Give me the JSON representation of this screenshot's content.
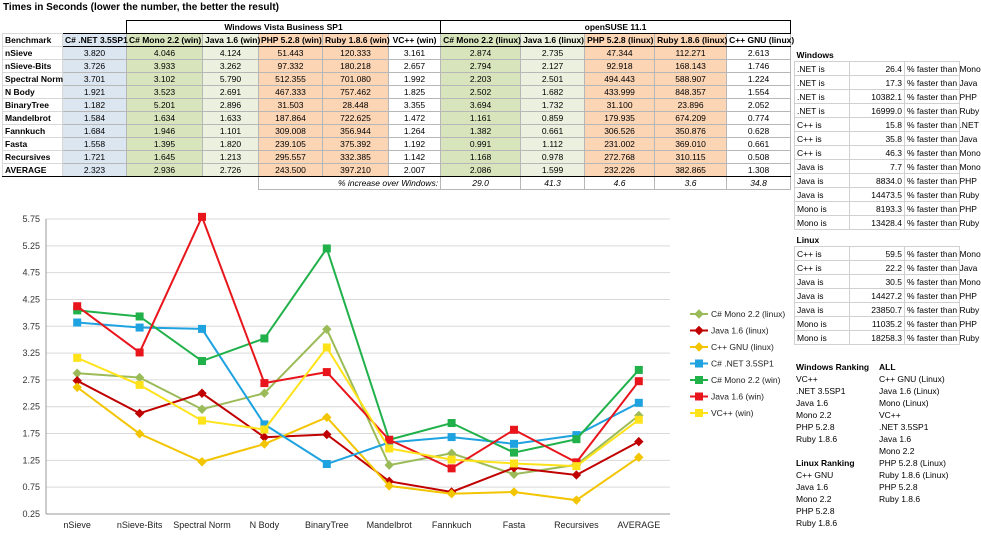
{
  "title": "Times in Seconds (lower the number, the better the result)",
  "groups": {
    "windows": "Windows Vista Business SP1",
    "linux": "openSUSE 11.1"
  },
  "columns": [
    "Benchmark",
    "C# .NET 3.5SP1",
    "C# Mono 2.2 (win)",
    "Java 1.6 (win)",
    "PHP 5.2.8 (win)",
    "Ruby 1.8.6 (win)",
    "VC++ (win)",
    "C# Mono 2.2 (linux)",
    "Java 1.6 (linux)",
    "PHP 5.2.8 (linux)",
    "Ruby 1.8.6 (linux)",
    "C++ GNU (linux)"
  ],
  "rows": [
    {
      "name": "nSieve",
      "values": [
        "3.820",
        "4.046",
        "4.124",
        "51.443",
        "120.333",
        "3.161",
        "2.874",
        "2.735",
        "47.344",
        "112.271",
        "2.613"
      ]
    },
    {
      "name": "nSieve-Bits",
      "values": [
        "3.726",
        "3.933",
        "3.262",
        "97.332",
        "180.218",
        "2.657",
        "2.794",
        "2.127",
        "92.918",
        "168.143",
        "1.746"
      ]
    },
    {
      "name": "Spectral Norm",
      "values": [
        "3.701",
        "3.102",
        "5.790",
        "512.355",
        "701.080",
        "1.992",
        "2.203",
        "2.501",
        "494.443",
        "588.907",
        "1.224"
      ]
    },
    {
      "name": "N Body",
      "values": [
        "1.921",
        "3.523",
        "2.691",
        "467.333",
        "757.462",
        "1.825",
        "2.502",
        "1.682",
        "433.999",
        "848.357",
        "1.554"
      ]
    },
    {
      "name": "BinaryTree",
      "values": [
        "1.182",
        "5.201",
        "2.896",
        "31.503",
        "28.448",
        "3.355",
        "3.694",
        "1.732",
        "31.100",
        "23.896",
        "2.052"
      ]
    },
    {
      "name": "Mandelbrot",
      "values": [
        "1.584",
        "1.634",
        "1.633",
        "187.864",
        "722.625",
        "1.472",
        "1.161",
        "0.859",
        "179.935",
        "674.209",
        "0.774"
      ]
    },
    {
      "name": "Fannkuch",
      "values": [
        "1.684",
        "1.946",
        "1.101",
        "309.008",
        "356.944",
        "1.264",
        "1.382",
        "0.661",
        "306.526",
        "350.876",
        "0.628"
      ]
    },
    {
      "name": "Fasta",
      "values": [
        "1.558",
        "1.395",
        "1.820",
        "239.105",
        "375.392",
        "1.192",
        "0.991",
        "1.112",
        "231.002",
        "369.010",
        "0.661"
      ]
    },
    {
      "name": "Recursives",
      "values": [
        "1.721",
        "1.645",
        "1.213",
        "295.557",
        "332.385",
        "1.142",
        "1.168",
        "0.978",
        "272.768",
        "310.115",
        "0.508"
      ]
    }
  ],
  "average": {
    "name": "AVERAGE",
    "values": [
      "2.323",
      "2.936",
      "2.726",
      "243.500",
      "397.210",
      "2.007",
      "2.086",
      "1.599",
      "232.226",
      "382.865",
      "1.308"
    ]
  },
  "increase": {
    "label": "% increase over Windows:",
    "values": [
      "29.0",
      "41.3",
      "4.6",
      "3.6",
      "34.8"
    ]
  },
  "windows_cmp": {
    "title": "Windows",
    "rows": [
      {
        "a": ".NET is",
        "v": "26.4",
        "t": "% faster than Mono"
      },
      {
        "a": ".NET is",
        "v": "17.3",
        "t": "% faster than Java"
      },
      {
        "a": ".NET is",
        "v": "10382.1",
        "t": "% faster than PHP"
      },
      {
        "a": ".NET is",
        "v": "16999.0",
        "t": "% faster than Ruby"
      },
      {
        "a": "C++ is",
        "v": "15.8",
        "t": "% faster than .NET"
      },
      {
        "a": "C++ is",
        "v": "35.8",
        "t": "% faster than Java"
      },
      {
        "a": "C++ is",
        "v": "46.3",
        "t": "% faster than Mono"
      },
      {
        "a": "Java is",
        "v": "7.7",
        "t": "% faster than Mono"
      },
      {
        "a": "Java is",
        "v": "8834.0",
        "t": "% faster than PHP"
      },
      {
        "a": "Java is",
        "v": "14473.5",
        "t": "% faster than Ruby"
      },
      {
        "a": "Mono is",
        "v": "8193.3",
        "t": "% faster than PHP"
      },
      {
        "a": "Mono is",
        "v": "13428.4",
        "t": "% faster than Ruby"
      }
    ]
  },
  "linux_cmp": {
    "title": "Linux",
    "rows": [
      {
        "a": "C++ is",
        "v": "59.5",
        "t": "% faster than Mono"
      },
      {
        "a": "C++ is",
        "v": "22.2",
        "t": "% faster than Java"
      },
      {
        "a": "Java is",
        "v": "30.5",
        "t": "% faster than Mono"
      },
      {
        "a": "Java is",
        "v": "14427.2",
        "t": "% faster than PHP"
      },
      {
        "a": "Java is",
        "v": "23850.7",
        "t": "% faster than Ruby"
      },
      {
        "a": "Mono is",
        "v": "11035.2",
        "t": "% faster than PHP"
      },
      {
        "a": "Mono is",
        "v": "18258.3",
        "t": "% faster than Ruby"
      }
    ]
  },
  "rankings": {
    "windows_title": "Windows Ranking",
    "all_title": "ALL",
    "windows": [
      "VC++",
      ".NET 3.5SP1",
      "Java 1.6",
      "Mono 2.2",
      "PHP 5.2.8",
      "Ruby 1.8.6"
    ],
    "all": [
      "C++ GNU (Linux)",
      "Java 1.6 (Linux)",
      "Mono (Linux)",
      "VC++",
      ".NET 3.5SP1",
      "Java 1.6",
      "Mono 2.2",
      "PHP 5.2.8 (Linux)",
      "Ruby 1.8.6 (Linux)",
      "PHP 5.2.8",
      "Ruby 1.8.6"
    ],
    "linux_title": "Linux Ranking",
    "linux": [
      "C++ GNU",
      "Java 1.6",
      "Mono 2.2",
      "PHP 5.2.8",
      "Ruby 1.8.6"
    ]
  },
  "chart_data": {
    "type": "line",
    "title": "",
    "xlabel": "",
    "ylabel": "",
    "ylim": [
      0.25,
      5.75
    ],
    "yticks": [
      "0.25",
      "0.75",
      "1.25",
      "1.75",
      "2.25",
      "2.75",
      "3.25",
      "3.75",
      "4.25",
      "4.75",
      "5.25",
      "5.75"
    ],
    "grid": true,
    "legend": "right",
    "categories": [
      "nSieve",
      "nSieve-Bits",
      "Spectral Norm",
      "N Body",
      "BinaryTree",
      "Mandelbrot",
      "Fannkuch",
      "Fasta",
      "Recursives",
      "AVERAGE"
    ],
    "series": [
      {
        "name": "C# Mono 2.2 (linux)",
        "color": "#9bbb59",
        "marker": "diamond",
        "values": [
          2.874,
          2.794,
          2.203,
          2.502,
          3.694,
          1.161,
          1.382,
          0.991,
          1.168,
          2.086
        ]
      },
      {
        "name": "Java 1.6 (linux)",
        "color": "#c00000",
        "marker": "diamond",
        "values": [
          2.735,
          2.127,
          2.501,
          1.682,
          1.732,
          0.859,
          0.661,
          1.112,
          0.978,
          1.599
        ]
      },
      {
        "name": "C++ GNU (linux)",
        "color": "#f2c500",
        "marker": "diamond",
        "values": [
          2.613,
          1.746,
          1.224,
          1.554,
          2.052,
          0.774,
          0.628,
          0.661,
          0.508,
          1.308
        ]
      },
      {
        "name": "C# .NET 3.5SP1",
        "color": "#1fa2e0",
        "marker": "square",
        "values": [
          3.82,
          3.726,
          3.701,
          1.921,
          1.182,
          1.584,
          1.684,
          1.558,
          1.721,
          2.323
        ]
      },
      {
        "name": "C# Mono 2.2 (win)",
        "color": "#20b14a",
        "marker": "square",
        "values": [
          4.046,
          3.933,
          3.102,
          3.523,
          5.201,
          1.634,
          1.946,
          1.395,
          1.645,
          2.936
        ]
      },
      {
        "name": "Java 1.6 (win)",
        "color": "#e8161c",
        "marker": "square",
        "values": [
          4.124,
          3.262,
          5.79,
          2.691,
          2.896,
          1.633,
          1.101,
          1.82,
          1.213,
          2.726
        ]
      },
      {
        "name": "VC++ (win)",
        "color": "#ffe31a",
        "marker": "square",
        "values": [
          3.161,
          2.657,
          1.992,
          1.825,
          3.355,
          1.472,
          1.264,
          1.192,
          1.142,
          2.007
        ]
      }
    ]
  }
}
